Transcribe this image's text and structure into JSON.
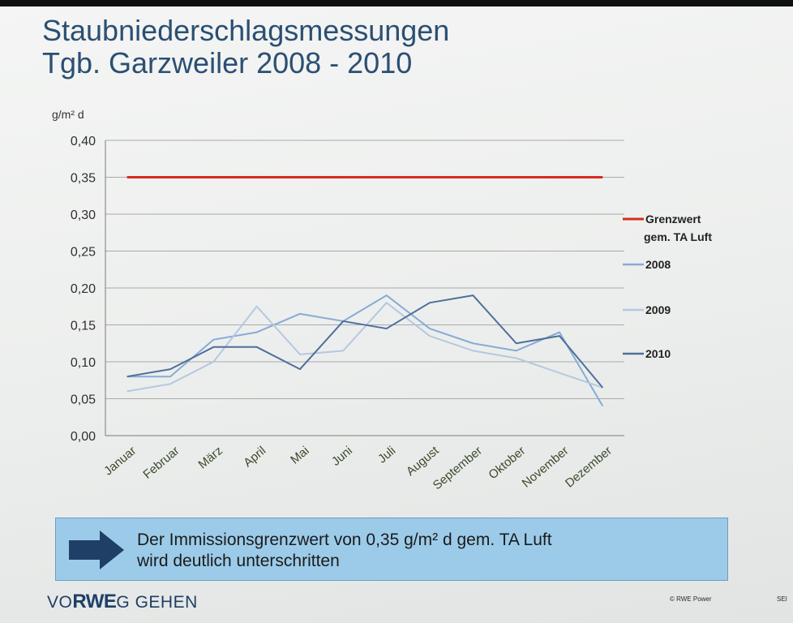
{
  "slide": {
    "title_line1": "Staubniederschlagsmessungen",
    "title_line2": "Tgb. Garzweiler 2008 - 2010",
    "callout_line1": "Der Immissionsgrenzwert von 0,35 g/m² d gem. TA Luft",
    "callout_line2": "wird deutlich unterschritten",
    "logo_prefix": "VO",
    "logo_brand": "RWE",
    "logo_suffix": "G GEHEN",
    "copyright": "© RWE Power",
    "page_label": "SEI"
  },
  "chart_data": {
    "type": "line",
    "title": "",
    "xlabel": "",
    "ylabel": "g/m² d",
    "ylim": [
      0,
      0.4
    ],
    "yticks": [
      "0,00",
      "0,05",
      "0,10",
      "0,15",
      "0,20",
      "0,25",
      "0,30",
      "0,35",
      "0,40"
    ],
    "grid": true,
    "legend_position": "right",
    "categories": [
      "Januar",
      "Februar",
      "März",
      "April",
      "Mai",
      "Juni",
      "Juli",
      "August",
      "September",
      "Oktober",
      "November",
      "Dezember"
    ],
    "series": [
      {
        "name": "Grenzwert",
        "legend_line2": "gem. TA Luft",
        "color": "#d92b20",
        "values": [
          0.35,
          0.35,
          0.35,
          0.35,
          0.35,
          0.35,
          0.35,
          0.35,
          0.35,
          0.35,
          0.35,
          0.35
        ]
      },
      {
        "name": "2008",
        "color": "#86abd6",
        "values": [
          0.08,
          0.08,
          0.13,
          0.14,
          0.165,
          0.155,
          0.19,
          0.145,
          0.125,
          0.115,
          0.14,
          0.04
        ]
      },
      {
        "name": "2009",
        "color": "#b5c8df",
        "values": [
          0.06,
          0.07,
          0.1,
          0.175,
          0.11,
          0.115,
          0.18,
          0.135,
          0.115,
          0.105,
          0.085,
          0.065
        ]
      },
      {
        "name": "2010",
        "color": "#4f6f99",
        "values": [
          0.08,
          0.09,
          0.12,
          0.12,
          0.09,
          0.155,
          0.145,
          0.18,
          0.19,
          0.125,
          0.135,
          0.065
        ]
      }
    ]
  }
}
